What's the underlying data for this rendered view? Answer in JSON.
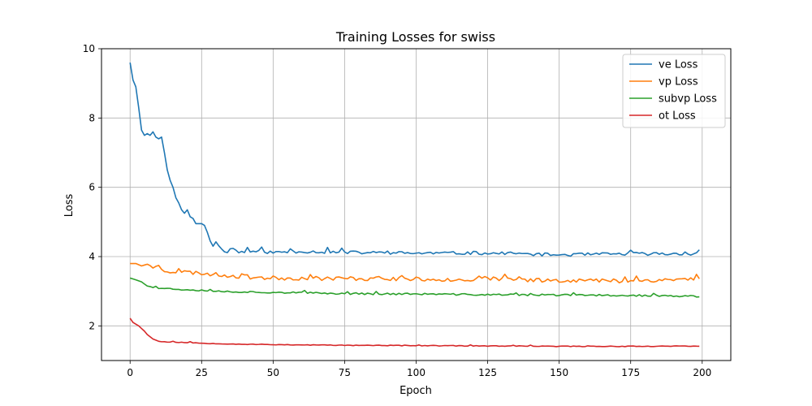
{
  "chart_data": {
    "type": "line",
    "title": "Training Losses for swiss",
    "xlabel": "Epoch",
    "ylabel": "Loss",
    "xlim": [
      -10,
      210
    ],
    "ylim": [
      1.0,
      10.0
    ],
    "xticks": [
      0,
      25,
      50,
      75,
      100,
      125,
      150,
      175,
      200
    ],
    "yticks": [
      2,
      4,
      6,
      8,
      10
    ],
    "grid": true,
    "legend_position": "top-right",
    "series": [
      {
        "name": "ve Loss",
        "color": "#1f77b4",
        "anchors": [
          [
            0,
            9.6
          ],
          [
            1,
            9.1
          ],
          [
            2,
            8.9
          ],
          [
            3,
            8.3
          ],
          [
            4,
            7.65
          ],
          [
            5,
            7.5
          ],
          [
            6,
            7.55
          ],
          [
            7,
            7.5
          ],
          [
            8,
            7.6
          ],
          [
            9,
            7.45
          ],
          [
            10,
            7.4
          ],
          [
            11,
            7.45
          ],
          [
            12,
            7.0
          ],
          [
            13,
            6.5
          ],
          [
            14,
            6.2
          ],
          [
            15,
            6.0
          ],
          [
            16,
            5.7
          ],
          [
            17,
            5.55
          ],
          [
            18,
            5.35
          ],
          [
            19,
            5.25
          ],
          [
            20,
            5.35
          ],
          [
            21,
            5.15
          ],
          [
            22,
            5.1
          ],
          [
            23,
            4.95
          ],
          [
            24,
            4.95
          ],
          [
            25,
            4.95
          ],
          [
            26,
            4.9
          ],
          [
            27,
            4.7
          ],
          [
            28,
            4.45
          ],
          [
            29,
            4.3
          ],
          [
            30,
            4.45
          ],
          [
            32,
            4.2
          ],
          [
            34,
            4.15
          ],
          [
            36,
            4.25
          ],
          [
            38,
            4.12
          ],
          [
            40,
            4.15
          ],
          [
            45,
            4.15
          ],
          [
            50,
            4.12
          ],
          [
            60,
            4.15
          ],
          [
            75,
            4.12
          ],
          [
            100,
            4.1
          ],
          [
            125,
            4.1
          ],
          [
            150,
            4.05
          ],
          [
            175,
            4.08
          ],
          [
            199,
            4.08
          ]
        ],
        "noise": 0.045,
        "noise_start": 30,
        "seed": 11
      },
      {
        "name": "vp Loss",
        "color": "#ff7f0e",
        "anchors": [
          [
            0,
            3.8
          ],
          [
            2,
            3.8
          ],
          [
            4,
            3.73
          ],
          [
            6,
            3.78
          ],
          [
            8,
            3.7
          ],
          [
            10,
            3.72
          ],
          [
            12,
            3.6
          ],
          [
            15,
            3.57
          ],
          [
            20,
            3.55
          ],
          [
            25,
            3.52
          ],
          [
            30,
            3.48
          ],
          [
            40,
            3.42
          ],
          [
            50,
            3.38
          ],
          [
            75,
            3.37
          ],
          [
            100,
            3.35
          ],
          [
            125,
            3.33
          ],
          [
            150,
            3.32
          ],
          [
            175,
            3.3
          ],
          [
            199,
            3.36
          ]
        ],
        "noise": 0.06,
        "noise_start": 8,
        "seed": 23
      },
      {
        "name": "subvp Loss",
        "color": "#2ca02c",
        "anchors": [
          [
            0,
            3.38
          ],
          [
            2,
            3.33
          ],
          [
            4,
            3.27
          ],
          [
            6,
            3.15
          ],
          [
            8,
            3.12
          ],
          [
            10,
            3.1
          ],
          [
            13,
            3.08
          ],
          [
            15,
            3.06
          ],
          [
            20,
            3.05
          ],
          [
            25,
            3.03
          ],
          [
            30,
            3.0
          ],
          [
            40,
            2.98
          ],
          [
            50,
            2.97
          ],
          [
            75,
            2.93
          ],
          [
            100,
            2.92
          ],
          [
            125,
            2.9
          ],
          [
            150,
            2.89
          ],
          [
            175,
            2.88
          ],
          [
            199,
            2.85
          ]
        ],
        "noise": 0.025,
        "noise_start": 8,
        "seed": 37
      },
      {
        "name": "ot Loss",
        "color": "#d62728",
        "anchors": [
          [
            0,
            2.22
          ],
          [
            1,
            2.1
          ],
          [
            3,
            2.0
          ],
          [
            5,
            1.85
          ],
          [
            6,
            1.75
          ],
          [
            8,
            1.62
          ],
          [
            10,
            1.56
          ],
          [
            12,
            1.54
          ],
          [
            15,
            1.53
          ],
          [
            20,
            1.52
          ],
          [
            25,
            1.5
          ],
          [
            30,
            1.49
          ],
          [
            40,
            1.47
          ],
          [
            50,
            1.46
          ],
          [
            75,
            1.44
          ],
          [
            100,
            1.43
          ],
          [
            125,
            1.42
          ],
          [
            150,
            1.41
          ],
          [
            175,
            1.41
          ],
          [
            199,
            1.42
          ]
        ],
        "noise": 0.01,
        "noise_start": 10,
        "seed": 53
      }
    ]
  }
}
